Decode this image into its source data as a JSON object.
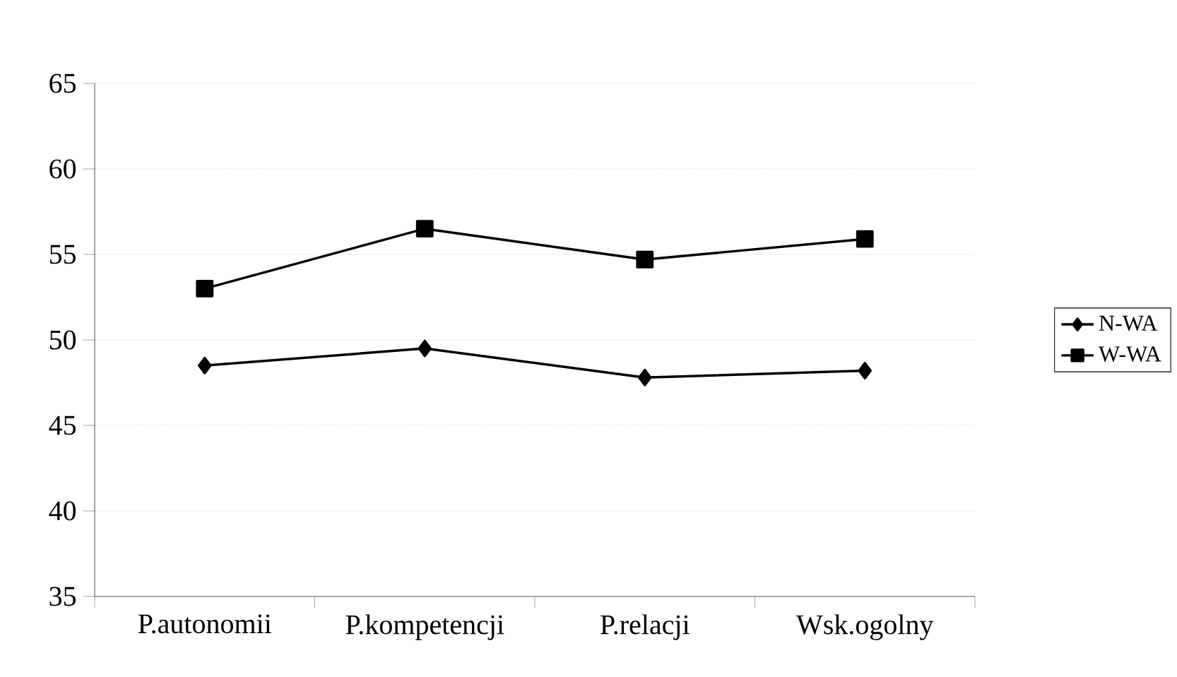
{
  "chart_data": {
    "type": "line",
    "categories": [
      "P.autonomii",
      "P.kompetencji",
      "P.relacji",
      "Wsk.ogolny"
    ],
    "series": [
      {
        "name": "N-WA",
        "color": "#000000",
        "marker": "diamond",
        "values": [
          48.5,
          49.5,
          47.8,
          48.2
        ]
      },
      {
        "name": "W-WA",
        "color": "#000000",
        "marker": "square",
        "values": [
          53.0,
          56.5,
          54.7,
          55.9
        ]
      }
    ],
    "ylim": [
      35,
      65
    ],
    "yticks": [
      35,
      40,
      45,
      50,
      55,
      60,
      65
    ],
    "grid": "y",
    "legend": "right"
  }
}
